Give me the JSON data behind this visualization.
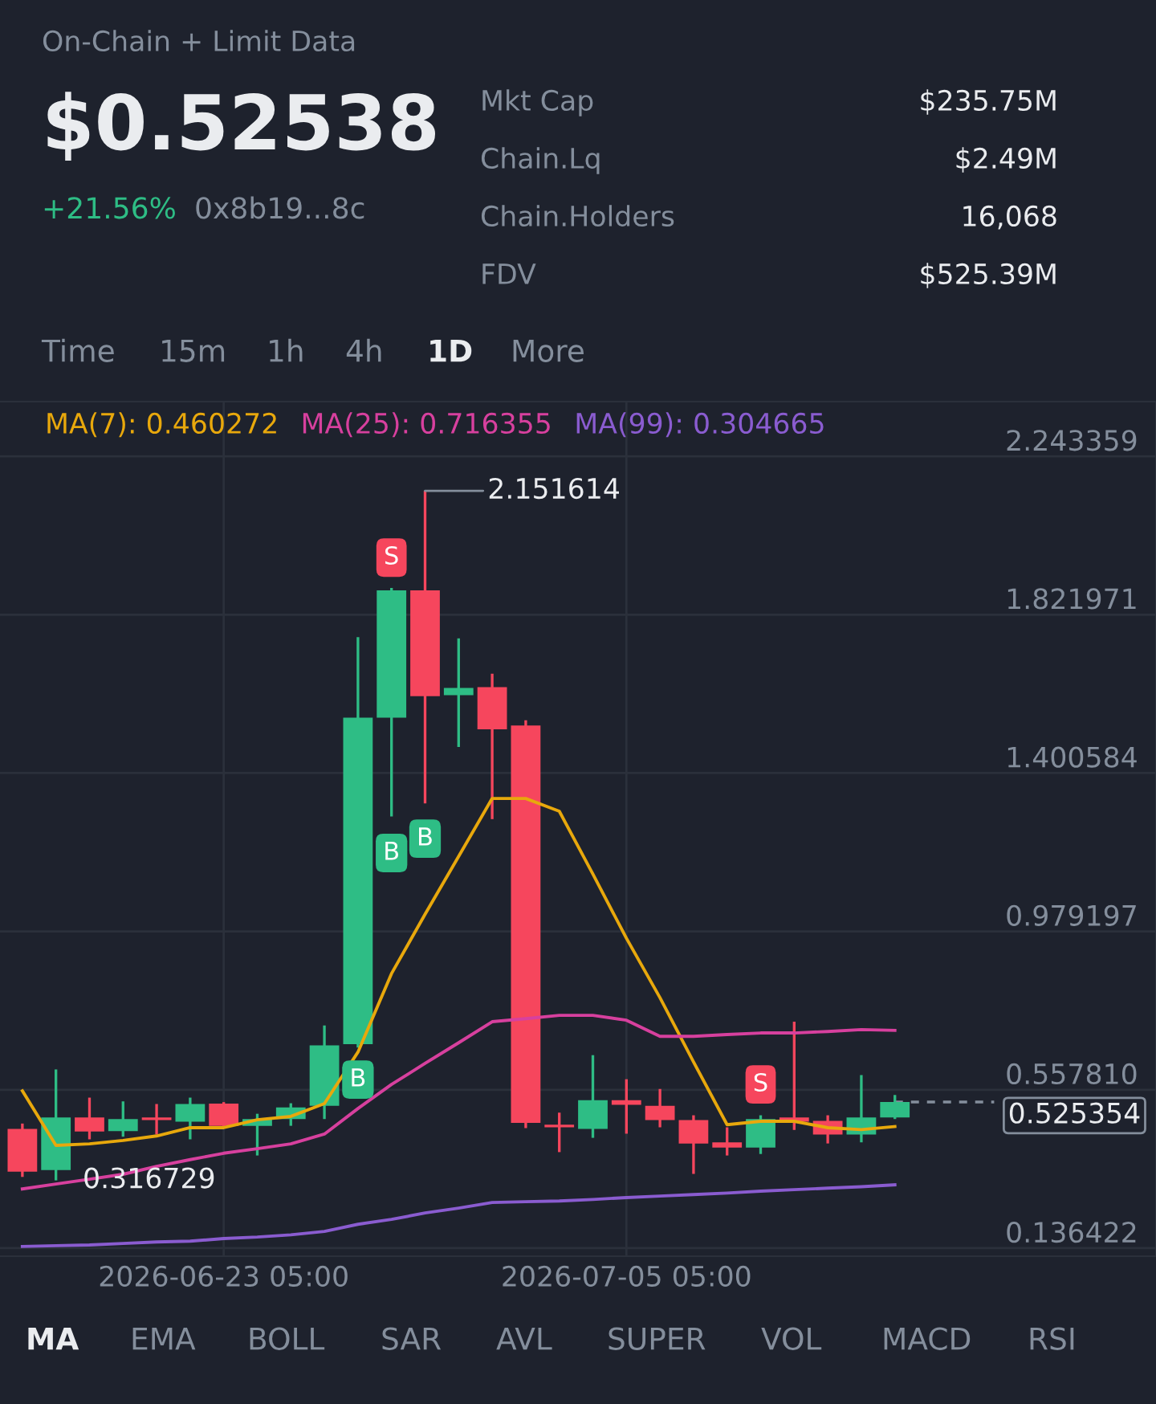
{
  "chart_data": {
    "type": "candlestick",
    "title": "$0.52538",
    "subtitle": "+21.56%",
    "x": [
      "2026-06-17T05:00",
      "2026-06-18T05:00",
      "2026-06-19T05:00",
      "2026-06-20T05:00",
      "2026-06-21T05:00",
      "2026-06-22T05:00",
      "2026-06-23T05:00",
      "2026-06-24T05:00",
      "2026-06-25T05:00",
      "2026-06-26T05:00",
      "2026-06-27T05:00",
      "2026-06-28T05:00",
      "2026-06-29T05:00",
      "2026-06-30T05:00",
      "2026-07-01T05:00",
      "2026-07-02T05:00",
      "2026-07-03T05:00",
      "2026-07-04T05:00",
      "2026-07-05T05:00",
      "2026-07-06T05:00",
      "2026-07-07T05:00",
      "2026-07-08T05:00",
      "2026-07-09T05:00",
      "2026-07-10T05:00",
      "2026-07-11T05:00",
      "2026-07-12T05:00",
      "2026-07-13T05:00"
    ],
    "ohlc": [
      [
        0.454,
        0.468,
        0.326,
        0.34
      ],
      [
        0.344,
        0.612,
        0.316729,
        0.484
      ],
      [
        0.484,
        0.537,
        0.426,
        0.447
      ],
      [
        0.448,
        0.527,
        0.433,
        0.48
      ],
      [
        0.484,
        0.52,
        0.439,
        0.477
      ],
      [
        0.473,
        0.537,
        0.426,
        0.52
      ],
      [
        0.521,
        0.525,
        0.458,
        0.462
      ],
      [
        0.462,
        0.494,
        0.383,
        0.48
      ],
      [
        0.48,
        0.522,
        0.462,
        0.511
      ],
      [
        0.515,
        0.729,
        0.48,
        0.676
      ],
      [
        0.679,
        1.762,
        0.67,
        1.548
      ],
      [
        1.548,
        1.893,
        1.285,
        1.887
      ],
      [
        1.887,
        2.151614,
        1.32,
        1.605
      ],
      [
        1.608,
        1.759,
        1.47,
        1.627
      ],
      [
        1.629,
        1.665,
        1.278,
        1.517
      ],
      [
        1.527,
        1.541,
        0.456,
        0.47
      ],
      [
        0.465,
        0.497,
        0.392,
        0.458
      ],
      [
        0.454,
        0.65,
        0.43,
        0.53
      ],
      [
        0.53,
        0.586,
        0.441,
        0.518
      ],
      [
        0.515,
        0.56,
        0.458,
        0.477
      ],
      [
        0.477,
        0.49,
        0.334,
        0.415
      ],
      [
        0.418,
        0.458,
        0.383,
        0.404
      ],
      [
        0.404,
        0.49,
        0.387,
        0.48
      ],
      [
        0.484,
        0.739,
        0.451,
        0.473
      ],
      [
        0.475,
        0.49,
        0.415,
        0.439
      ],
      [
        0.439,
        0.597,
        0.418,
        0.484
      ],
      [
        0.484,
        0.544,
        0.48,
        0.525354
      ]
    ],
    "colors": [
      "#f6465d",
      "#2ebd85",
      "#f6465d",
      "#2ebd85",
      "#f6465d",
      "#2ebd85",
      "#f6465d",
      "#2ebd85",
      "#2ebd85",
      "#2ebd85",
      "#2ebd85",
      "#2ebd85",
      "#f6465d",
      "#2ebd85",
      "#f6465d",
      "#f6465d",
      "#f6465d",
      "#2ebd85",
      "#f6465d",
      "#f6465d",
      "#f6465d",
      "#f6465d",
      "#2ebd85",
      "#f6465d",
      "#f6465d",
      "#2ebd85",
      "#2ebd85"
    ],
    "series": [
      {
        "name": "MA(7): 0.460272",
        "type": "line",
        "color": "#e8a80c",
        "values": [
          0.555,
          0.41,
          0.414,
          0.423,
          0.435,
          0.457,
          0.457,
          0.478,
          0.487,
          0.521,
          0.658,
          0.867,
          1.025,
          1.179,
          1.333,
          1.333,
          1.299,
          1.132,
          0.961,
          0.803,
          0.632,
          0.465,
          0.474,
          0.474,
          0.457,
          0.452,
          0.46
        ]
      },
      {
        "name": "MA(25): 0.716355",
        "type": "line",
        "color": "#d7409e",
        "values": [
          0.294,
          0.307,
          0.32,
          0.333,
          0.354,
          0.372,
          0.389,
          0.401,
          0.414,
          0.44,
          0.508,
          0.572,
          0.628,
          0.683,
          0.739,
          0.747,
          0.756,
          0.756,
          0.743,
          0.7,
          0.7,
          0.705,
          0.709,
          0.709,
          0.713,
          0.718,
          0.716
        ]
      },
      {
        "name": "MA(99): 0.304665",
        "type": "line",
        "color": "#8a5cd0",
        "values": [
          0.141,
          0.143,
          0.145,
          0.149,
          0.153,
          0.155,
          0.162,
          0.166,
          0.172,
          0.181,
          0.2,
          0.213,
          0.23,
          0.243,
          0.258,
          0.26,
          0.262,
          0.266,
          0.271,
          0.275,
          0.279,
          0.283,
          0.288,
          0.292,
          0.296,
          0.3,
          0.305
        ]
      }
    ],
    "xlim": [
      "2026-06-16T13:00",
      "2026-07-20T23:45"
    ],
    "xticks": [
      {
        "value": "2026-06-23T05:00",
        "label": "2026-06-23 05:00"
      },
      {
        "value": "2026-07-05T05:00",
        "label": "2026-07-05 05:00"
      }
    ],
    "ylim": [
      0.115,
      2.389
    ],
    "yticks": [
      2.243359,
      1.821971,
      1.400584,
      0.979197,
      {
        "value": 0.55781,
        "label": "0.557810"
      },
      0.136422
    ],
    "grid": true,
    "ref_lines": [
      {
        "axis": "y",
        "value": 0.525354,
        "label": "0.525354",
        "line_style": "dashed"
      }
    ],
    "annotations": [
      "On-Chain + Limit Data",
      "0x8b19...8c",
      "Mkt Cap",
      "$235.75M",
      "Chain.Lq",
      "$2.49M",
      "Chain.Holders",
      "16,068",
      "FDV",
      "$525.39M",
      "Time",
      "15m",
      "1h",
      "4h",
      "1D",
      "More",
      "MA",
      "EMA",
      "BOLL",
      "SAR",
      "AVL",
      "SUPER",
      "VOL",
      "MACD",
      "RSI",
      {
        "text": "2.151614",
        "x": "2026-06-29T05:00",
        "y": 2.151614
      },
      {
        "text": "0.316729",
        "x": "2026-06-18T05:00",
        "y": 0.316729
      },
      {
        "text": "S",
        "x": "2026-06-28T05:00",
        "y": 1.974
      },
      {
        "text": "B",
        "x": "2026-06-28T05:00",
        "y": 1.188
      },
      {
        "text": "B",
        "x": "2026-06-29T05:00",
        "y": 1.226
      },
      {
        "text": "B",
        "x": "2026-06-27T05:00",
        "y": 0.585
      },
      {
        "text": "S",
        "x": "2026-07-09T05:00",
        "y": 0.572
      }
    ],
    "legend": false
  }
}
